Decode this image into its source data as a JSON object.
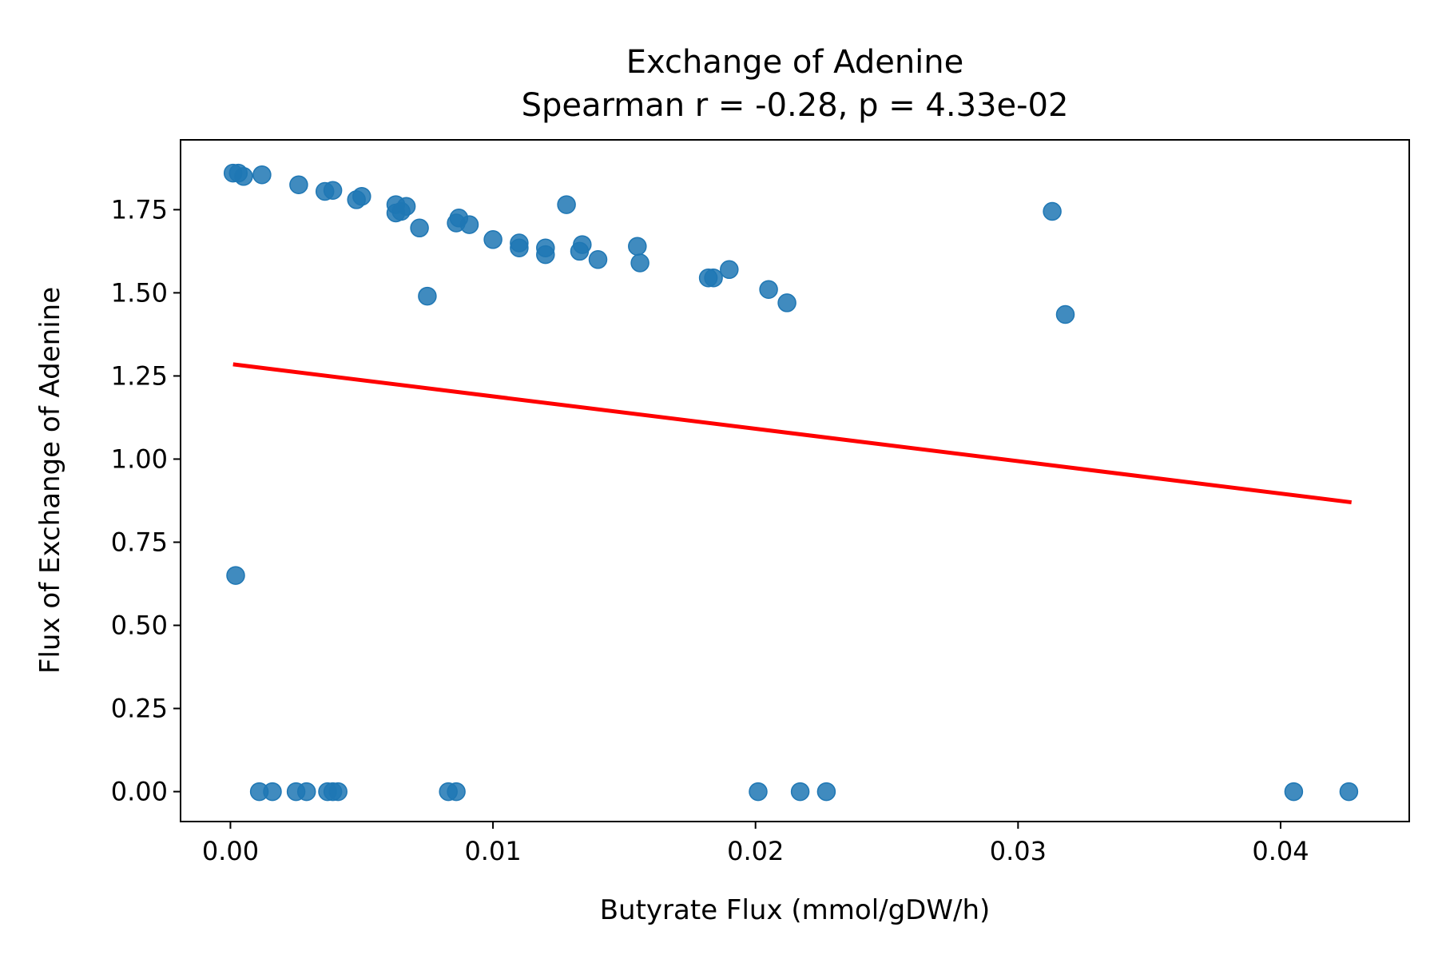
{
  "chart_data": {
    "type": "scatter",
    "title": "Exchange of Adenine",
    "subtitle": "Spearman r = -0.28, p = 4.33e-02",
    "xlabel": "Butyrate Flux (mmol/gDW/h)",
    "ylabel": "Flux of Exchange of Adenine",
    "xlim": [
      -0.0019,
      0.0449
    ],
    "ylim": [
      -0.09,
      1.96
    ],
    "xticks": [
      0.0,
      0.01,
      0.02,
      0.03,
      0.04
    ],
    "xtick_labels": [
      "0.00",
      "0.01",
      "0.02",
      "0.03",
      "0.04"
    ],
    "yticks": [
      0.0,
      0.25,
      0.5,
      0.75,
      1.0,
      1.25,
      1.5,
      1.75
    ],
    "ytick_labels": [
      "0.00",
      "0.25",
      "0.50",
      "0.75",
      "1.00",
      "1.25",
      "1.50",
      "1.75"
    ],
    "grid": false,
    "legend": "none",
    "colors": {
      "points": "#1f77b4",
      "fit_line": "#ff0000"
    },
    "points": [
      {
        "x": 0.0001,
        "y": 1.86
      },
      {
        "x": 0.0003,
        "y": 1.86
      },
      {
        "x": 0.0005,
        "y": 1.85
      },
      {
        "x": 0.0012,
        "y": 1.855
      },
      {
        "x": 0.0026,
        "y": 1.825
      },
      {
        "x": 0.0036,
        "y": 1.805
      },
      {
        "x": 0.0039,
        "y": 1.808
      },
      {
        "x": 0.0048,
        "y": 1.78
      },
      {
        "x": 0.005,
        "y": 1.79
      },
      {
        "x": 0.0063,
        "y": 1.74
      },
      {
        "x": 0.0063,
        "y": 1.765
      },
      {
        "x": 0.0065,
        "y": 1.745
      },
      {
        "x": 0.0067,
        "y": 1.76
      },
      {
        "x": 0.0072,
        "y": 1.695
      },
      {
        "x": 0.0075,
        "y": 1.49
      },
      {
        "x": 0.0086,
        "y": 1.71
      },
      {
        "x": 0.0087,
        "y": 1.725
      },
      {
        "x": 0.0091,
        "y": 1.705
      },
      {
        "x": 0.01,
        "y": 1.66
      },
      {
        "x": 0.011,
        "y": 1.635
      },
      {
        "x": 0.011,
        "y": 1.65
      },
      {
        "x": 0.012,
        "y": 1.615
      },
      {
        "x": 0.012,
        "y": 1.635
      },
      {
        "x": 0.0128,
        "y": 1.765
      },
      {
        "x": 0.0133,
        "y": 1.625
      },
      {
        "x": 0.0134,
        "y": 1.645
      },
      {
        "x": 0.014,
        "y": 1.6
      },
      {
        "x": 0.0155,
        "y": 1.64
      },
      {
        "x": 0.0156,
        "y": 1.59
      },
      {
        "x": 0.0182,
        "y": 1.545
      },
      {
        "x": 0.0184,
        "y": 1.545
      },
      {
        "x": 0.019,
        "y": 1.57
      },
      {
        "x": 0.0205,
        "y": 1.51
      },
      {
        "x": 0.0212,
        "y": 1.47
      },
      {
        "x": 0.0313,
        "y": 1.745
      },
      {
        "x": 0.0318,
        "y": 1.435
      },
      {
        "x": 0.0002,
        "y": 0.65
      },
      {
        "x": 0.0011,
        "y": 0.0
      },
      {
        "x": 0.0016,
        "y": 0.0
      },
      {
        "x": 0.0025,
        "y": 0.0
      },
      {
        "x": 0.0029,
        "y": 0.0
      },
      {
        "x": 0.0037,
        "y": 0.0
      },
      {
        "x": 0.0039,
        "y": 0.0
      },
      {
        "x": 0.0041,
        "y": 0.0
      },
      {
        "x": 0.0083,
        "y": 0.0
      },
      {
        "x": 0.0086,
        "y": 0.0
      },
      {
        "x": 0.0201,
        "y": 0.0
      },
      {
        "x": 0.0217,
        "y": 0.0
      },
      {
        "x": 0.0227,
        "y": 0.0
      },
      {
        "x": 0.0405,
        "y": 0.0
      },
      {
        "x": 0.0426,
        "y": 0.0
      }
    ],
    "fit_line": {
      "x": [
        0.0001,
        0.0427
      ],
      "y": [
        1.285,
        0.87
      ]
    }
  }
}
